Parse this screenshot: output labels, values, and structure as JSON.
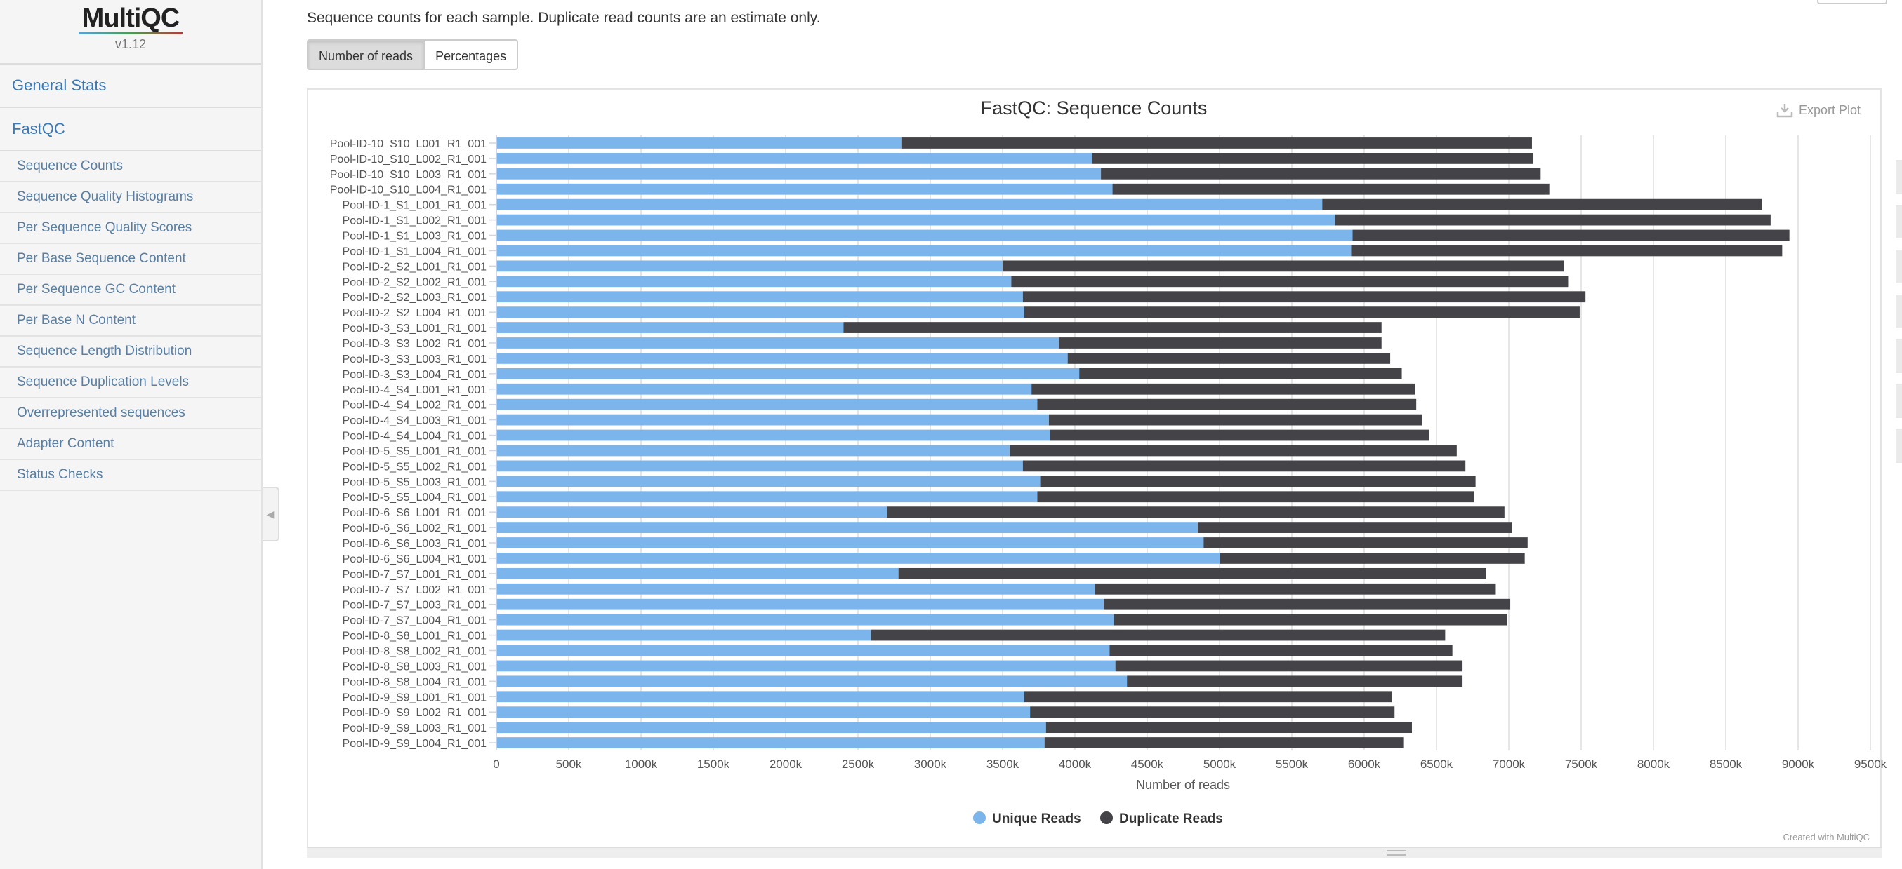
{
  "sidebar": {
    "logo": "MultiQC",
    "version": "v1.12",
    "general_stats": "General Stats",
    "fastqc": "FastQC",
    "items": [
      "Sequence Counts",
      "Sequence Quality Histograms",
      "Per Sequence Quality Scores",
      "Per Base Sequence Content",
      "Per Sequence GC Content",
      "Per Base N Content",
      "Sequence Length Distribution",
      "Sequence Duplication Levels",
      "Overrepresented sequences",
      "Adapter Content",
      "Status Checks"
    ]
  },
  "header": {
    "description": "Sequence counts for each sample. Duplicate read counts are an estimate only."
  },
  "buttons": {
    "reads": "Number of reads",
    "percentages": "Percentages",
    "export": "Export Plot"
  },
  "credit": "Created with MultiQC",
  "chart_data": {
    "type": "bar",
    "orientation": "horizontal",
    "stacked": true,
    "title": "FastQC: Sequence Counts",
    "xlabel": "Number of reads",
    "ylabel": "",
    "xlim": [
      0,
      9500000
    ],
    "x_ticks": [
      0,
      500000,
      1000000,
      1500000,
      2000000,
      2500000,
      3000000,
      3500000,
      4000000,
      4500000,
      5000000,
      5500000,
      6000000,
      6500000,
      7000000,
      7500000,
      8000000,
      8500000,
      9000000,
      9500000
    ],
    "x_tick_labels": [
      "0",
      "500k",
      "1000k",
      "1500k",
      "2000k",
      "2500k",
      "3000k",
      "3500k",
      "4000k",
      "4500k",
      "5000k",
      "5500k",
      "6000k",
      "6500k",
      "7000k",
      "7500k",
      "8000k",
      "8500k",
      "9000k",
      "9500k"
    ],
    "grid": true,
    "legend_position": "bottom",
    "categories": [
      "Pool-ID-10_S10_L001_R1_001",
      "Pool-ID-10_S10_L002_R1_001",
      "Pool-ID-10_S10_L003_R1_001",
      "Pool-ID-10_S10_L004_R1_001",
      "Pool-ID-1_S1_L001_R1_001",
      "Pool-ID-1_S1_L002_R1_001",
      "Pool-ID-1_S1_L003_R1_001",
      "Pool-ID-1_S1_L004_R1_001",
      "Pool-ID-2_S2_L001_R1_001",
      "Pool-ID-2_S2_L002_R1_001",
      "Pool-ID-2_S2_L003_R1_001",
      "Pool-ID-2_S2_L004_R1_001",
      "Pool-ID-3_S3_L001_R1_001",
      "Pool-ID-3_S3_L002_R1_001",
      "Pool-ID-3_S3_L003_R1_001",
      "Pool-ID-3_S3_L004_R1_001",
      "Pool-ID-4_S4_L001_R1_001",
      "Pool-ID-4_S4_L002_R1_001",
      "Pool-ID-4_S4_L003_R1_001",
      "Pool-ID-4_S4_L004_R1_001",
      "Pool-ID-5_S5_L001_R1_001",
      "Pool-ID-5_S5_L002_R1_001",
      "Pool-ID-5_S5_L003_R1_001",
      "Pool-ID-5_S5_L004_R1_001",
      "Pool-ID-6_S6_L001_R1_001",
      "Pool-ID-6_S6_L002_R1_001",
      "Pool-ID-6_S6_L003_R1_001",
      "Pool-ID-6_S6_L004_R1_001",
      "Pool-ID-7_S7_L001_R1_001",
      "Pool-ID-7_S7_L002_R1_001",
      "Pool-ID-7_S7_L003_R1_001",
      "Pool-ID-7_S7_L004_R1_001",
      "Pool-ID-8_S8_L001_R1_001",
      "Pool-ID-8_S8_L002_R1_001",
      "Pool-ID-8_S8_L003_R1_001",
      "Pool-ID-8_S8_L004_R1_001",
      "Pool-ID-9_S9_L001_R1_001",
      "Pool-ID-9_S9_L002_R1_001",
      "Pool-ID-9_S9_L003_R1_001",
      "Pool-ID-9_S9_L004_R1_001"
    ],
    "series": [
      {
        "name": "Unique Reads",
        "color": "#7cb5ec",
        "values": [
          2800000,
          4120000,
          4180000,
          4260000,
          5710000,
          5800000,
          5920000,
          5910000,
          3500000,
          3560000,
          3640000,
          3650000,
          2400000,
          3890000,
          3950000,
          4030000,
          3700000,
          3740000,
          3820000,
          3830000,
          3550000,
          3640000,
          3760000,
          3740000,
          2700000,
          4850000,
          4890000,
          5000000,
          2780000,
          4140000,
          4200000,
          4270000,
          2590000,
          4240000,
          4280000,
          4360000,
          3650000,
          3690000,
          3800000,
          3790000
        ]
      },
      {
        "name": "Duplicate Reads",
        "color": "#434348",
        "values": [
          4360000,
          3050000,
          3040000,
          3020000,
          3040000,
          3010000,
          3020000,
          2980000,
          3880000,
          3850000,
          3890000,
          3840000,
          3720000,
          2230000,
          2230000,
          2230000,
          2650000,
          2620000,
          2580000,
          2620000,
          3090000,
          3060000,
          3010000,
          3020000,
          4270000,
          2170000,
          2240000,
          2110000,
          4060000,
          2770000,
          2810000,
          2720000,
          3970000,
          2370000,
          2400000,
          2320000,
          2540000,
          2520000,
          2530000,
          2480000
        ]
      }
    ]
  }
}
